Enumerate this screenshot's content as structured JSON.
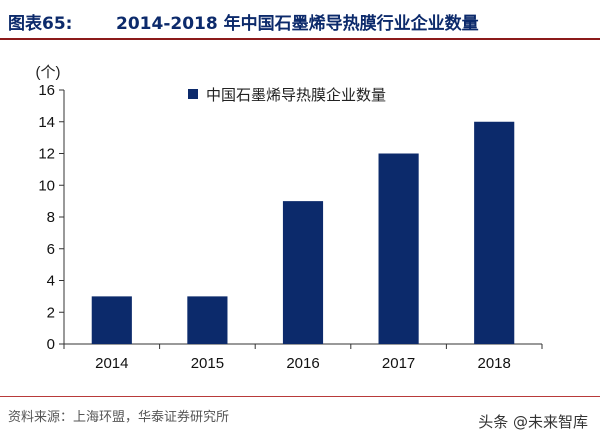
{
  "header": {
    "fig_label": "图表65:",
    "title": "2014-2018 年中国石墨烯导热膜行业企业数量"
  },
  "chart_data": {
    "type": "bar",
    "title": "",
    "ylabel": "(个)",
    "xlabel": "",
    "categories": [
      "2014",
      "2015",
      "2016",
      "2017",
      "2018"
    ],
    "series": [
      {
        "name": "中国石墨烯导热膜企业数量",
        "values": [
          3,
          3,
          9,
          12,
          14
        ]
      }
    ],
    "ylim": [
      0,
      16
    ],
    "yticks": [
      "0",
      "2",
      "4",
      "6",
      "8",
      "10",
      "12",
      "14",
      "16"
    ],
    "legend": "top-center",
    "grid": false,
    "color": "#0c2a6b"
  },
  "footer": {
    "source": "资料来源：上海环盟，华泰证券研究所",
    "watermark": "头条 @未来智库"
  }
}
